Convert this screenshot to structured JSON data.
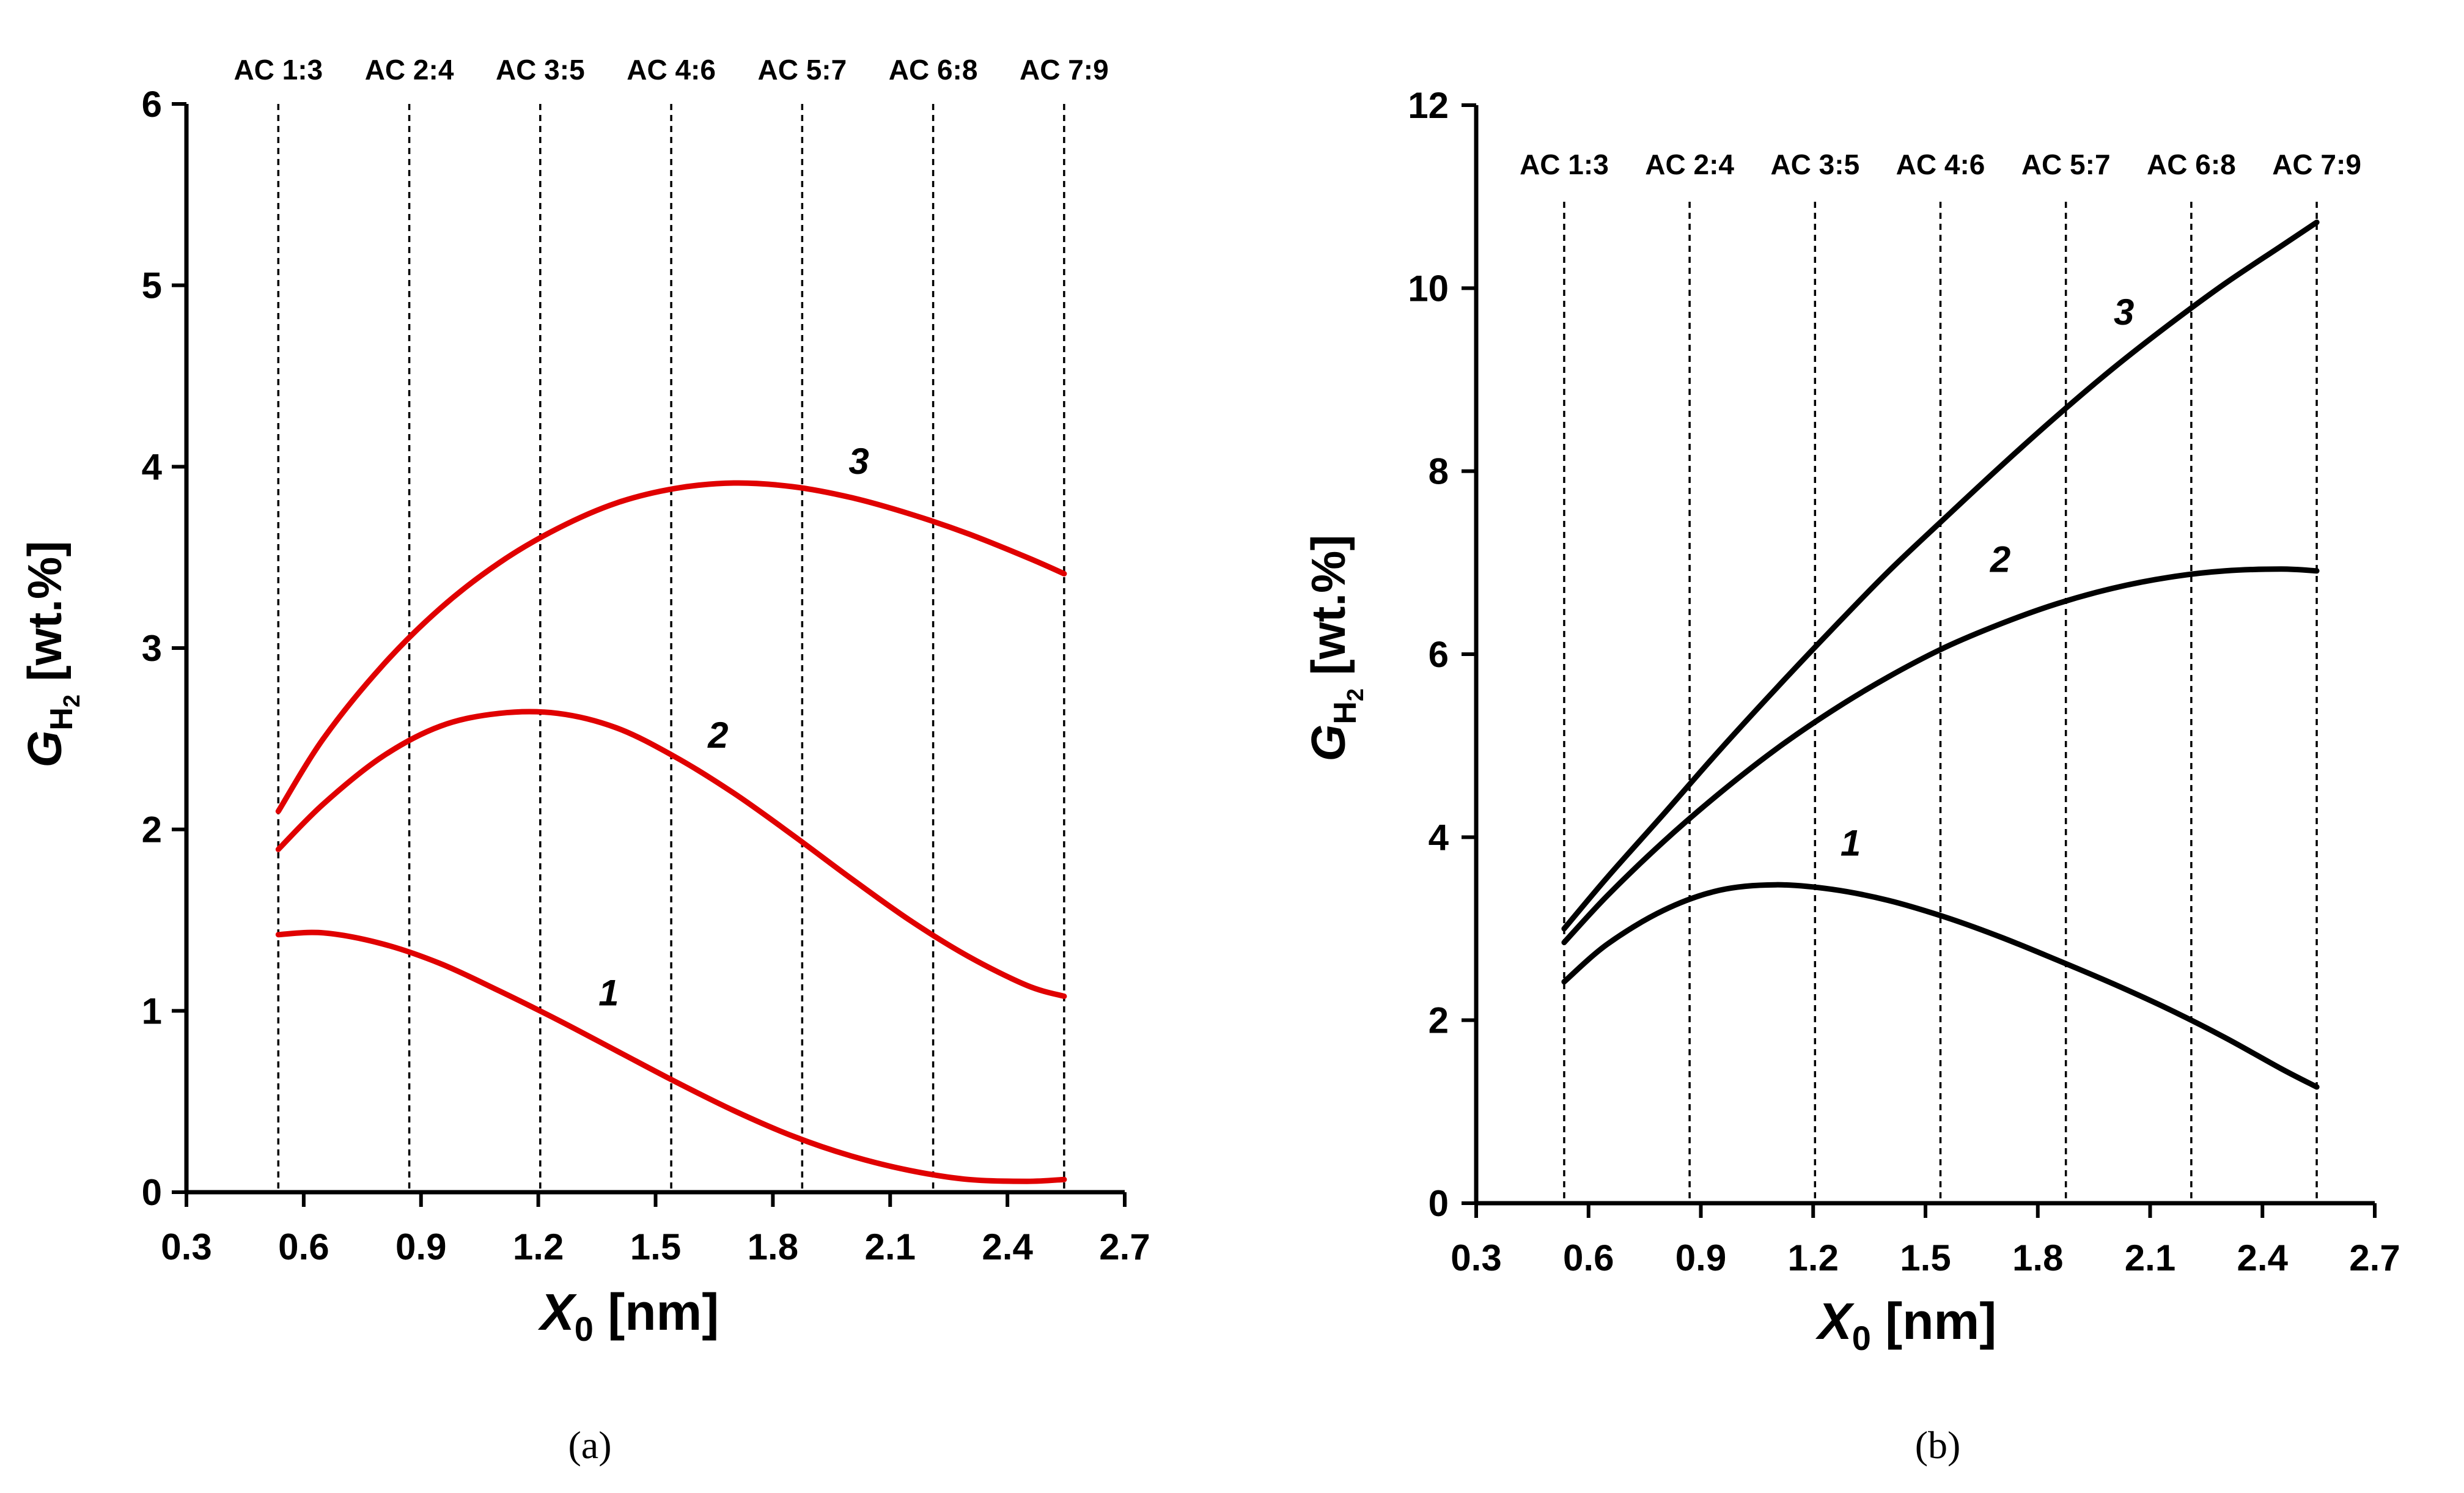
{
  "chart_data": [
    {
      "panel": "a",
      "type": "line",
      "caption": "(a)",
      "color": "#e00000",
      "xlabel": {
        "main": "X",
        "sub": "0",
        "unit": " [nm]"
      },
      "ylabel": {
        "main": "G",
        "sub": "H",
        "subsub": "2",
        "unit": " [wt.%]"
      },
      "xlim": [
        0.3,
        2.7
      ],
      "ylim": [
        0,
        6
      ],
      "xticks": [
        "0.3",
        "0.6",
        "0.9",
        "1.2",
        "1.5",
        "1.8",
        "2.1",
        "2.4",
        "2.7"
      ],
      "yticks": [
        "0",
        "1",
        "2",
        "3",
        "4",
        "5",
        "6"
      ],
      "vlines": [
        {
          "label": "AC 1:3",
          "x": 0.535
        },
        {
          "label": "AC 2:4",
          "x": 0.87
        },
        {
          "label": "AC 3:5",
          "x": 1.205
        },
        {
          "label": "AC 4:6",
          "x": 1.54
        },
        {
          "label": "AC 5:7",
          "x": 1.875
        },
        {
          "label": "AC 6:8",
          "x": 2.21
        },
        {
          "label": "AC 7:9",
          "x": 2.545
        }
      ],
      "series": [
        {
          "name": "1",
          "x": [
            0.535,
            0.65,
            0.8,
            0.95,
            1.1,
            1.25,
            1.4,
            1.55,
            1.7,
            1.85,
            2.0,
            2.15,
            2.3,
            2.45,
            2.545
          ],
          "y": [
            1.42,
            1.43,
            1.37,
            1.26,
            1.11,
            0.95,
            0.78,
            0.61,
            0.45,
            0.31,
            0.2,
            0.12,
            0.07,
            0.06,
            0.07
          ],
          "label_pos": {
            "x": 1.38,
            "y": 1.03
          }
        },
        {
          "name": "2",
          "x": [
            0.535,
            0.65,
            0.8,
            0.95,
            1.1,
            1.25,
            1.4,
            1.55,
            1.7,
            1.85,
            2.0,
            2.15,
            2.3,
            2.45,
            2.545
          ],
          "y": [
            1.89,
            2.14,
            2.4,
            2.57,
            2.64,
            2.64,
            2.56,
            2.4,
            2.2,
            1.97,
            1.73,
            1.5,
            1.3,
            1.14,
            1.08
          ],
          "label_pos": {
            "x": 1.66,
            "y": 2.45
          }
        },
        {
          "name": "3",
          "x": [
            0.535,
            0.65,
            0.8,
            0.95,
            1.1,
            1.25,
            1.4,
            1.55,
            1.7,
            1.85,
            2.0,
            2.15,
            2.3,
            2.45,
            2.545
          ],
          "y": [
            2.1,
            2.5,
            2.9,
            3.22,
            3.47,
            3.66,
            3.8,
            3.88,
            3.91,
            3.89,
            3.83,
            3.74,
            3.63,
            3.5,
            3.41
          ],
          "label_pos": {
            "x": 2.02,
            "y": 3.96
          }
        }
      ]
    },
    {
      "panel": "b",
      "type": "line",
      "caption": "(b)",
      "color": "#000000",
      "xlabel": {
        "main": "X",
        "sub": "0",
        "unit": " [nm]"
      },
      "ylabel": {
        "main": "G",
        "sub": "H",
        "subsub": "2",
        "unit": " [wt.%]"
      },
      "xlim": [
        0.3,
        2.7
      ],
      "ylim": [
        0,
        12
      ],
      "xticks": [
        "0.3",
        "0.6",
        "0.9",
        "1.2",
        "1.5",
        "1.8",
        "2.1",
        "2.4",
        "2.7"
      ],
      "yticks": [
        "0",
        "2",
        "4",
        "6",
        "8",
        "10",
        "12"
      ],
      "vlines": [
        {
          "label": "AC 1:3",
          "x": 0.535
        },
        {
          "label": "AC 2:4",
          "x": 0.87
        },
        {
          "label": "AC 3:5",
          "x": 1.205
        },
        {
          "label": "AC 4:6",
          "x": 1.54
        },
        {
          "label": "AC 5:7",
          "x": 1.875
        },
        {
          "label": "AC 6:8",
          "x": 2.21
        },
        {
          "label": "AC 7:9",
          "x": 2.545
        }
      ],
      "series": [
        {
          "name": "1",
          "x": [
            0.535,
            0.65,
            0.8,
            0.95,
            1.1,
            1.25,
            1.4,
            1.55,
            1.7,
            1.85,
            2.0,
            2.15,
            2.3,
            2.45,
            2.545
          ],
          "y": [
            2.42,
            2.83,
            3.2,
            3.42,
            3.48,
            3.43,
            3.31,
            3.13,
            2.91,
            2.66,
            2.4,
            2.12,
            1.81,
            1.47,
            1.27
          ],
          "label_pos": {
            "x": 1.3,
            "y": 3.8
          }
        },
        {
          "name": "2",
          "x": [
            0.535,
            0.65,
            0.8,
            0.95,
            1.1,
            1.25,
            1.4,
            1.55,
            1.7,
            1.85,
            2.0,
            2.15,
            2.3,
            2.45,
            2.545
          ],
          "y": [
            2.85,
            3.36,
            3.95,
            4.48,
            4.96,
            5.38,
            5.75,
            6.07,
            6.33,
            6.55,
            6.72,
            6.84,
            6.91,
            6.93,
            6.91
          ],
          "label_pos": {
            "x": 1.7,
            "y": 6.9
          }
        },
        {
          "name": "3",
          "x": [
            0.535,
            0.65,
            0.8,
            0.95,
            1.1,
            1.25,
            1.4,
            1.55,
            1.7,
            1.85,
            2.0,
            2.15,
            2.3,
            2.45,
            2.545
          ],
          "y": [
            3.0,
            3.56,
            4.25,
            4.95,
            5.62,
            6.27,
            6.9,
            7.48,
            8.05,
            8.6,
            9.12,
            9.6,
            10.05,
            10.46,
            10.72
          ],
          "label_pos": {
            "x": 2.03,
            "y": 9.6
          }
        }
      ]
    }
  ]
}
